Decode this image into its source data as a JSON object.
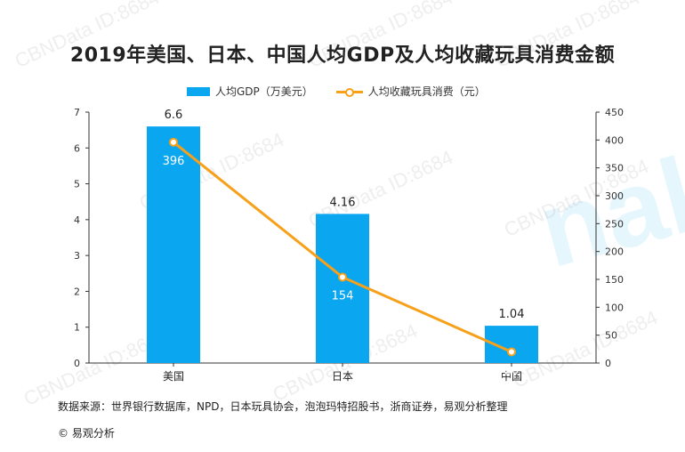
{
  "title": "2019年美国、日本、中国人均GDP及人均收藏玩具消费金额",
  "legend": {
    "bar": "人均GDP（万美元）",
    "line": "人均收藏玩具消费（元）"
  },
  "source": "数据来源：世界银行数据库，NPD，日本玩具协会，泡泡玛特招股书，浙商证券，易观分析整理",
  "footer": "© 易观分析",
  "watermark": "CBNData ID:8684",
  "colors": {
    "bar": "#0aa6f0",
    "line": "#f7a01a"
  },
  "chart_data": {
    "type": "bar",
    "categories": [
      "美国",
      "日本",
      "中国"
    ],
    "series": [
      {
        "name": "人均GDP（万美元）",
        "type": "bar",
        "axis": "left",
        "values": [
          6.6,
          4.16,
          1.04
        ]
      },
      {
        "name": "人均收藏玩具消费（元）",
        "type": "line",
        "axis": "right",
        "values": [
          396,
          154,
          20
        ]
      }
    ],
    "ylim_left": [
      0,
      7
    ],
    "yticks_left": [
      "0",
      "1",
      "2",
      "3",
      "4",
      "5",
      "6",
      "7"
    ],
    "ylim_right": [
      0,
      450
    ],
    "yticks_right": [
      "0",
      "50",
      "100",
      "150",
      "200",
      "250",
      "300",
      "350",
      "400",
      "450"
    ],
    "grid": false,
    "legend_position": "top"
  }
}
